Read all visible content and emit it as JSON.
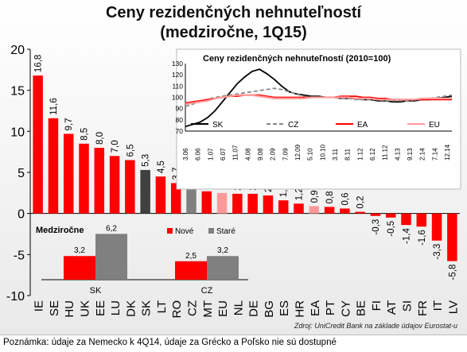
{
  "title_line1": "Ceny rezidenčných nehnuteľností",
  "title_line2": "(medziročne, 1Q15)",
  "source": "Zdroj: UniCredit Bank na základe údajov Eurostat-u",
  "note": "Poznámka: údaje za Nemecko k 4Q14, údaje za Grécko a Poľsko nie sú dostupné",
  "colors": {
    "main": "#ff0000",
    "sk": "#404040",
    "cz": "#808080",
    "eu": "#ff9999"
  },
  "chart_data": [
    {
      "type": "bar",
      "title": "Ceny rezidenčných nehnuteľností (medziročne, 1Q15)",
      "categories": [
        "IE",
        "SE",
        "HU",
        "UK",
        "EE",
        "LU",
        "DK",
        "SK",
        "LT",
        "RO",
        "CZ",
        "MT",
        "EU",
        "NL",
        "DE",
        "BG",
        "ES",
        "HR",
        "EA",
        "PT",
        "CY",
        "BE",
        "FI",
        "AT",
        "SI",
        "FR",
        "IT",
        "LV"
      ],
      "values": [
        16.8,
        11.6,
        9.7,
        8.5,
        8.0,
        7.0,
        6.5,
        5.3,
        4.5,
        3.7,
        3.1,
        2.7,
        2.5,
        2.4,
        2.4,
        2.2,
        1.6,
        1.2,
        0.9,
        0.8,
        0.6,
        0.2,
        -0.3,
        -0.5,
        -1.4,
        -1.6,
        -3.3,
        -5.8
      ],
      "value_labels": [
        "16,8",
        "11,6",
        "9,7",
        "8,5",
        "8,0",
        "7,0",
        "6,5",
        "5,3",
        "4,5",
        "3,7",
        "3,1",
        "2,7",
        "2,5",
        "2,4",
        "2,4",
        "2,2",
        "1,6",
        "1,2",
        "0,9",
        "0,8",
        "0,6",
        "0,2",
        "-0,3",
        "-0,5",
        "-1,4",
        "-1,6",
        "-3,3",
        "-5,8"
      ],
      "highlight": {
        "SK": "sk",
        "CZ": "cz",
        "EU": "eu",
        "EA": "eu"
      },
      "ylim": [
        -10,
        20
      ],
      "yticks": [
        -10,
        -5,
        0,
        5,
        10,
        15,
        20
      ]
    },
    {
      "type": "bar",
      "title": "Medziročne",
      "categories": [
        "SK",
        "CZ"
      ],
      "legend": [
        "Nové",
        "Staré"
      ],
      "series": [
        {
          "name": "Nové",
          "values": [
            3.2,
            2.5
          ],
          "labels": [
            "3,2",
            "2,5"
          ]
        },
        {
          "name": "Staré",
          "values": [
            6.2,
            3.2
          ],
          "labels": [
            "6,2",
            "3,2"
          ]
        }
      ]
    },
    {
      "type": "line",
      "title": "Ceny rezidenčných nehnuteľností (2010=100)",
      "x": [
        "3.06",
        "6.06",
        "9.06",
        "12.06",
        "3.07",
        "6.07",
        "9.07",
        "12.07",
        "3.08",
        "6.08",
        "9.08",
        "12.08",
        "3.09",
        "6.09",
        "9.09",
        "12.09",
        "3.10",
        "6.10",
        "9.10",
        "12.10",
        "3.11",
        "6.11",
        "9.11",
        "12.11",
        "3.12",
        "6.12",
        "9.12",
        "12.12",
        "3.13",
        "6.13",
        "9.13",
        "12.13",
        "3.14",
        "6.14",
        "9.14",
        "12.14",
        "3.15"
      ],
      "xtick_labels": [
        "3.06",
        "6.06",
        "1.07",
        "6.07",
        "11.07",
        "4.08",
        "9.08",
        "2.09",
        "7.09",
        "12.09",
        "5.10",
        "10.10",
        "3.11",
        "8.11",
        "1.12",
        "6.12",
        "11.12",
        "4.13",
        "9.13",
        "2.14",
        "7.14",
        "12.14"
      ],
      "ylim": [
        70,
        130
      ],
      "yticks": [
        70,
        80,
        90,
        100,
        110,
        120,
        130
      ],
      "series": [
        {
          "name": "SK",
          "color": "#000000",
          "values": [
            74,
            76,
            78,
            82,
            88,
            96,
            104,
            112,
            118,
            123,
            125,
            121,
            116,
            110,
            105,
            103,
            102,
            101,
            101,
            100,
            100,
            99,
            99,
            99,
            98,
            98,
            97,
            97,
            96,
            96,
            97,
            97,
            98,
            98,
            99,
            100,
            101
          ]
        },
        {
          "name": "CZ",
          "color": "#888888",
          "values": [
            92,
            94,
            96,
            98,
            100,
            101,
            102,
            103,
            104,
            105,
            106,
            107,
            108,
            107,
            105,
            103,
            101,
            100,
            100,
            100,
            100,
            99,
            99,
            98,
            98,
            98,
            98,
            97,
            97,
            97,
            97,
            98,
            98,
            99,
            100,
            101,
            102
          ]
        },
        {
          "name": "EA",
          "color": "#ff0000",
          "values": [
            95,
            96,
            97,
            98,
            99,
            100,
            101,
            101,
            102,
            102,
            102,
            101,
            100,
            100,
            100,
            100,
            100,
            100,
            100,
            100,
            100,
            101,
            101,
            101,
            100,
            100,
            99,
            99,
            98,
            98,
            98,
            98,
            98,
            98,
            98,
            98,
            98
          ]
        },
        {
          "name": "EU",
          "color": "#ff9999",
          "values": [
            94,
            95,
            96,
            97,
            99,
            100,
            101,
            102,
            102,
            102,
            101,
            100,
            99,
            99,
            99,
            99,
            99,
            100,
            100,
            100,
            100,
            100,
            100,
            99,
            99,
            99,
            98,
            98,
            98,
            98,
            98,
            98,
            99,
            99,
            99,
            99,
            99
          ]
        }
      ]
    }
  ]
}
